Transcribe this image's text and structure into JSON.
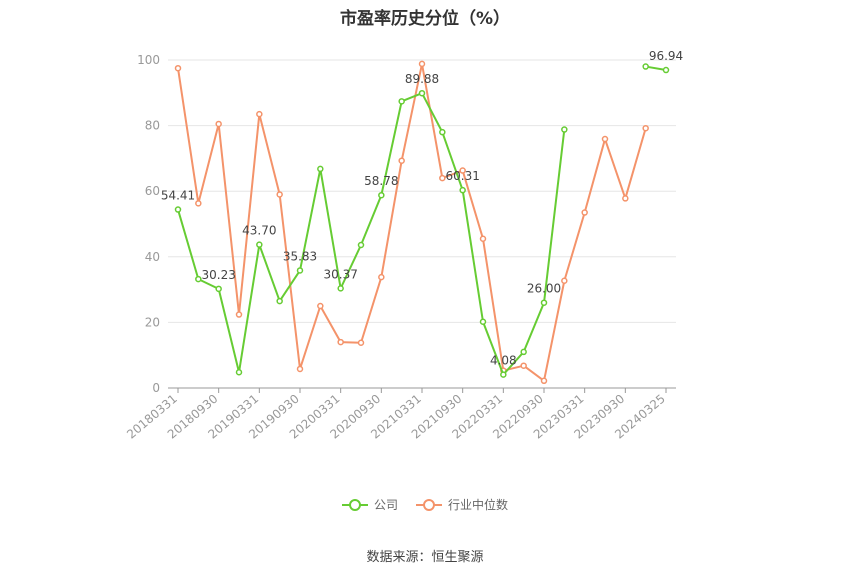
{
  "title": "市盈率历史分位（%）",
  "source": "数据来源：恒生聚源",
  "colors": {
    "company": "#66cc33",
    "industry": "#f4936a",
    "grid": "#e6e6e6",
    "axis": "#999999"
  },
  "chart_data": {
    "type": "line",
    "title": "市盈率历史分位（%）",
    "xlabel": "",
    "ylabel": "",
    "ylim": [
      0,
      100
    ],
    "yticks": [
      "0",
      "20",
      "40",
      "60",
      "80",
      "100"
    ],
    "x_tick_labels": [
      "20180331",
      "20180930",
      "20190331",
      "20190930",
      "20200331",
      "20200930",
      "20210331",
      "20210930",
      "20220331",
      "20220930",
      "20230331",
      "20230930",
      "20240325"
    ],
    "legend_position": "bottom",
    "grid": true,
    "series": [
      {
        "name": "公司",
        "color": "#66cc33",
        "values": [
          54.41,
          33.2,
          30.23,
          4.8,
          43.7,
          26.5,
          35.83,
          66.8,
          30.37,
          43.6,
          58.78,
          87.4,
          89.88,
          78.0,
          60.31,
          20.2,
          4.08,
          11.0,
          26.0,
          78.8,
          null,
          null,
          null,
          98.0,
          96.94
        ],
        "labels": [
          "54.41",
          "",
          "30.23",
          "",
          "43.70",
          "",
          "35.83",
          "",
          "30.37",
          "",
          "58.78",
          "",
          "89.88",
          "",
          "60.31",
          "",
          "4.08",
          "",
          "26.00",
          "",
          "",
          "",
          "",
          "",
          "96.94"
        ]
      },
      {
        "name": "行业中位数",
        "color": "#f4936a",
        "values": [
          97.5,
          56.3,
          80.5,
          22.4,
          83.5,
          59.0,
          5.8,
          25.0,
          14.0,
          13.8,
          33.8,
          69.3,
          98.8,
          64.0,
          66.3,
          45.5,
          5.3,
          6.8,
          2.2,
          32.7,
          53.5,
          75.9,
          57.8,
          79.2,
          null
        ]
      }
    ]
  }
}
